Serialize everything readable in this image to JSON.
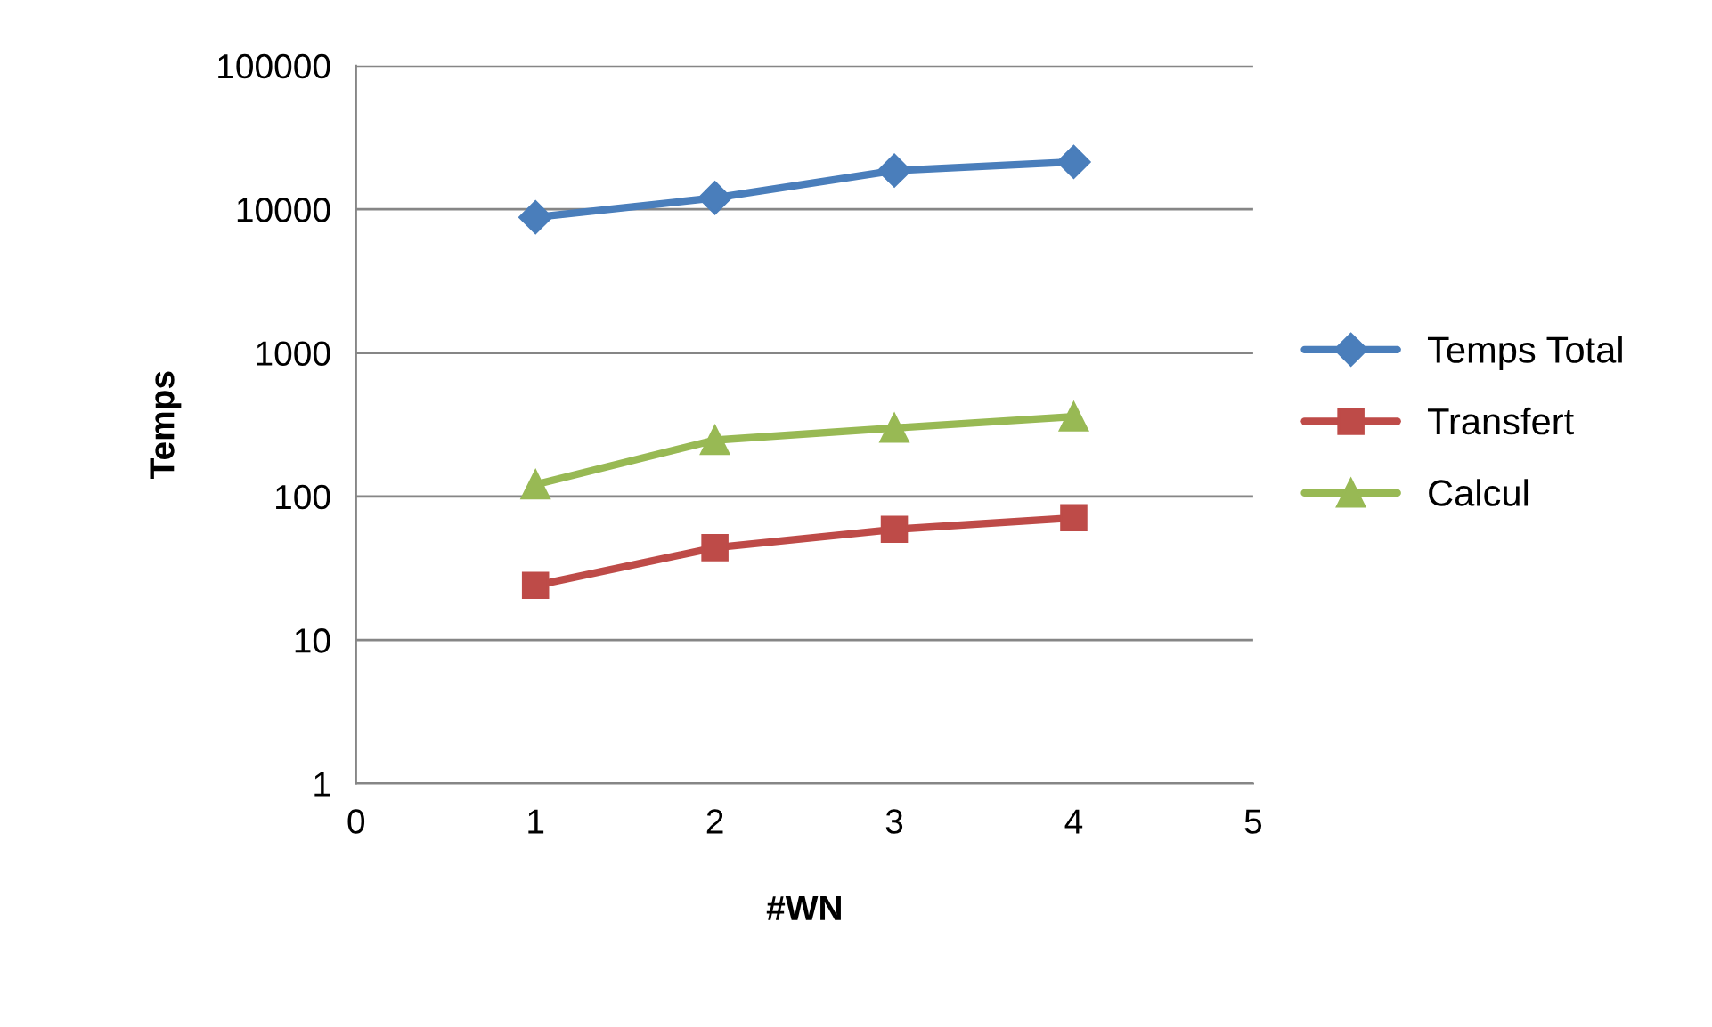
{
  "chart_data": {
    "type": "line",
    "xlabel": "#WN",
    "ylabel": "Temps",
    "log": "y",
    "grid": "y",
    "legend": "right",
    "line_style": "solid",
    "xlim": [
      0,
      5
    ],
    "xticks": [
      0,
      1,
      2,
      3,
      4,
      5
    ],
    "ylim": [
      1,
      100000
    ],
    "yticks": [
      1,
      10,
      100,
      1000,
      10000,
      100000
    ],
    "series": [
      {
        "name": "Temps Total",
        "color": "#4a7ebb",
        "marker": "diamond",
        "x": [
          1,
          2,
          3,
          4
        ],
        "values": [
          8800,
          12000,
          18600,
          21400
        ]
      },
      {
        "name": "Transfert",
        "color": "#be4b48",
        "marker": "square",
        "x": [
          1,
          2,
          3,
          4
        ],
        "values": [
          24,
          44,
          59,
          71
        ]
      },
      {
        "name": "Calcul",
        "color": "#98b954",
        "marker": "triangle",
        "x": [
          1,
          2,
          3,
          4
        ],
        "values": [
          121,
          247,
          300,
          360
        ]
      }
    ]
  }
}
